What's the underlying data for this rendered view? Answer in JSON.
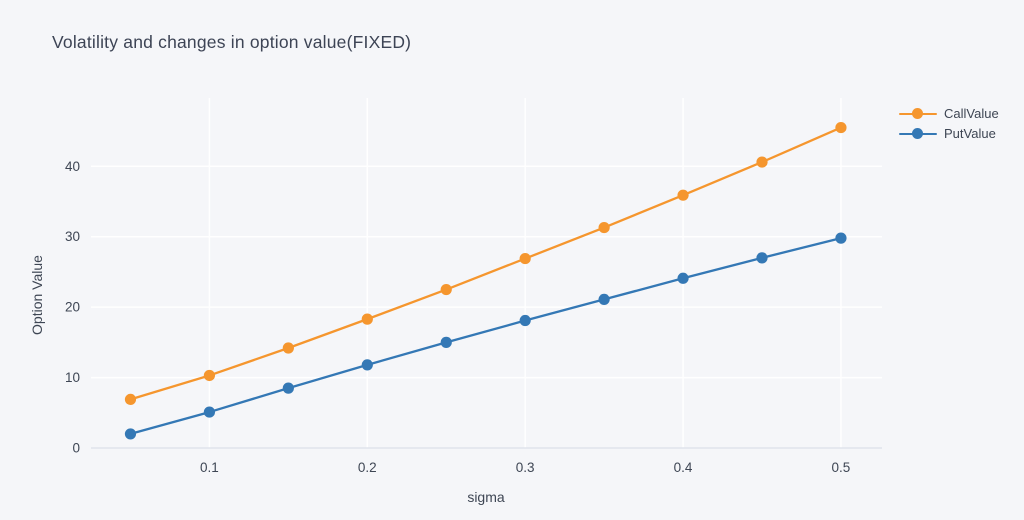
{
  "chart_data": {
    "type": "line",
    "title": "Volatility and changes in option value(FIXED)",
    "xlabel": "sigma",
    "ylabel": "Option Value",
    "x": [
      0.05,
      0.1,
      0.15,
      0.2,
      0.25,
      0.3,
      0.35,
      0.4,
      0.45,
      0.5
    ],
    "series": [
      {
        "name": "CallValue",
        "color": "#f5962e",
        "values": [
          6.9,
          10.3,
          14.2,
          18.3,
          22.5,
          26.9,
          31.3,
          35.9,
          40.6,
          45.5
        ]
      },
      {
        "name": "PutValue",
        "color": "#3478b5",
        "values": [
          2.0,
          5.1,
          8.5,
          11.8,
          15.0,
          18.1,
          21.1,
          24.1,
          27.0,
          29.8
        ]
      }
    ],
    "xticks": [
      0.1,
      0.2,
      0.3,
      0.4,
      0.5
    ],
    "yticks": [
      0,
      10,
      20,
      30,
      40
    ],
    "xlim": [
      0.025,
      0.526
    ],
    "ylim": [
      0,
      49.7
    ],
    "grid": true,
    "legend_position": "right-top-outside",
    "colors": {
      "background": "#f5f6f9",
      "gridline": "#ffffff",
      "axis_line": "#e0e4ec",
      "tick_text": "#3e4654",
      "title_text": "#3d4455"
    }
  }
}
